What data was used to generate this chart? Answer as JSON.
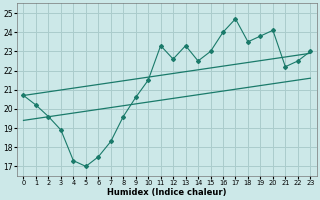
{
  "title": "",
  "xlabel": "Humidex (Indice chaleur)",
  "background_color": "#cce8e8",
  "grid_color": "#aacccc",
  "line_color": "#1a7a6a",
  "xlim": [
    -0.5,
    23.5
  ],
  "ylim": [
    16.5,
    25.5
  ],
  "yticks": [
    17,
    18,
    19,
    20,
    21,
    22,
    23,
    24,
    25
  ],
  "xticks": [
    0,
    1,
    2,
    3,
    4,
    5,
    6,
    7,
    8,
    9,
    10,
    11,
    12,
    13,
    14,
    15,
    16,
    17,
    18,
    19,
    20,
    21,
    22,
    23
  ],
  "data_x": [
    0,
    1,
    2,
    3,
    4,
    5,
    6,
    7,
    8,
    9,
    10,
    11,
    12,
    13,
    14,
    15,
    16,
    17,
    18,
    19,
    20,
    21,
    22,
    23
  ],
  "data_y": [
    20.7,
    20.2,
    19.6,
    18.9,
    17.3,
    17.0,
    17.5,
    18.3,
    19.6,
    20.6,
    21.5,
    23.3,
    22.6,
    23.3,
    22.5,
    23.0,
    24.0,
    24.7,
    23.5,
    23.8,
    24.1,
    22.2,
    22.5,
    23.0
  ],
  "trend1_x": [
    0,
    23
  ],
  "trend1_y": [
    20.7,
    22.9
  ],
  "trend2_x": [
    0,
    23
  ],
  "trend2_y": [
    19.4,
    21.6
  ]
}
